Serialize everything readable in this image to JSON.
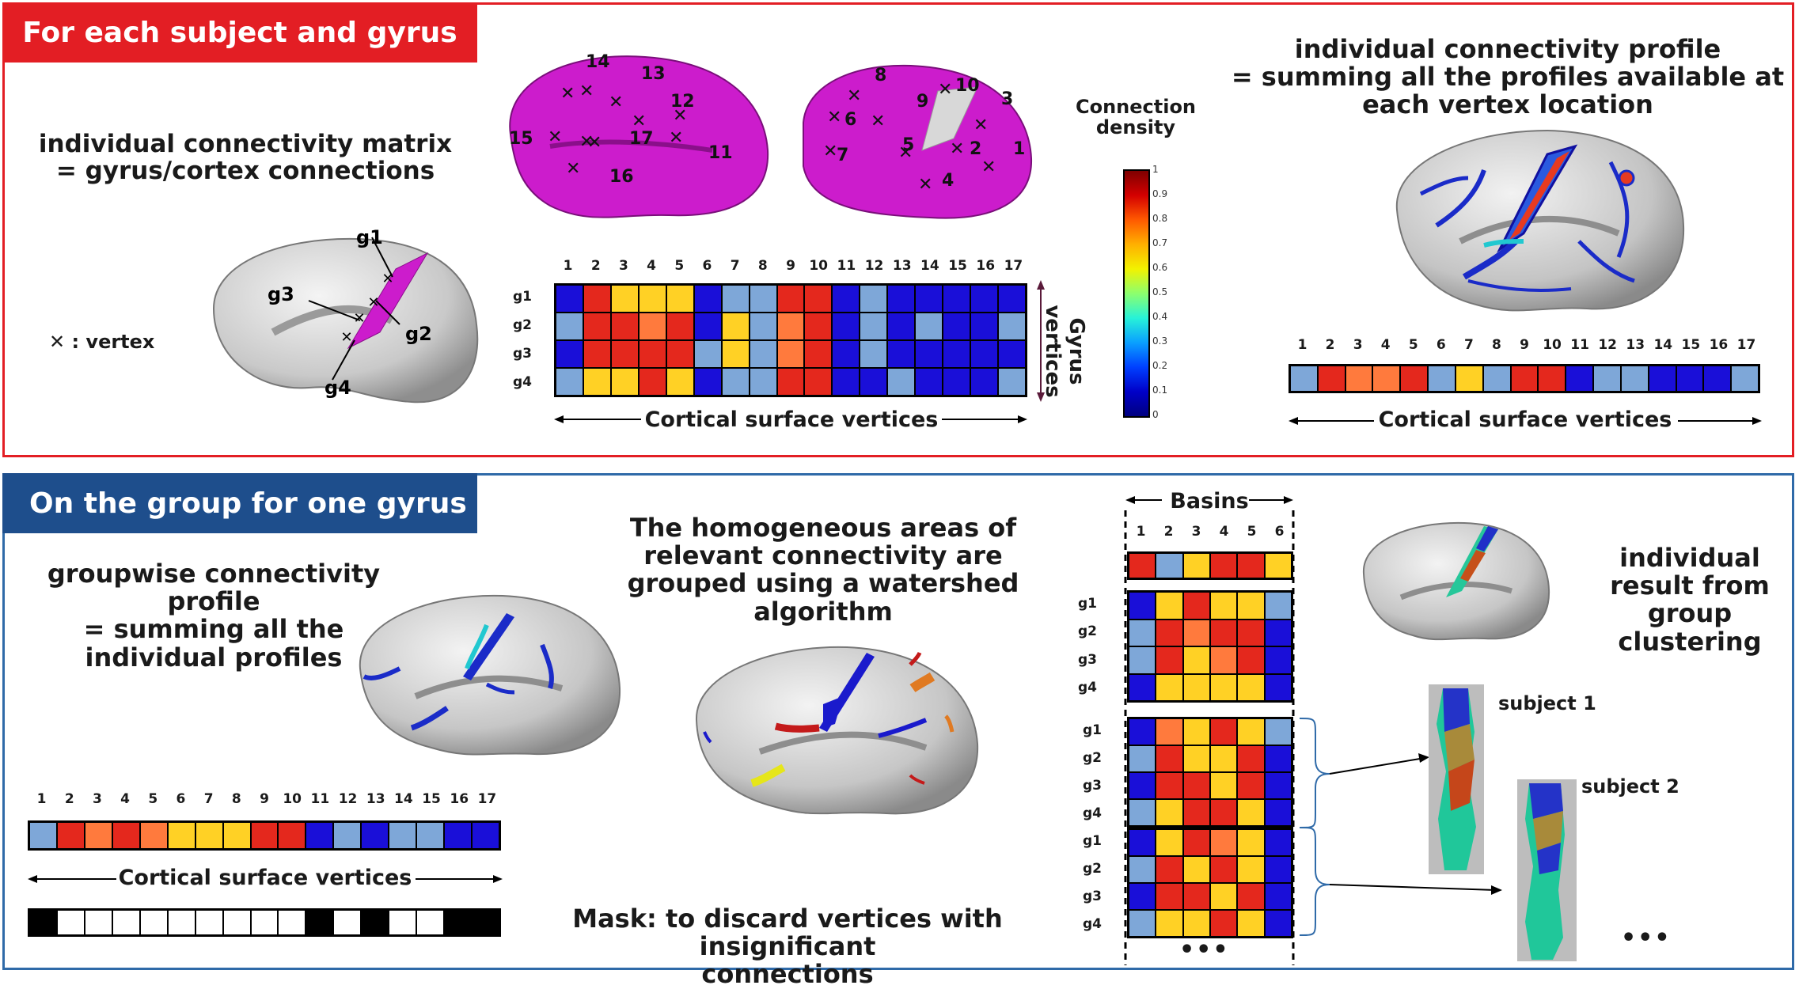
{
  "colors": {
    "c1": "#e4281d",
    "c2": "#ff7a3d",
    "c3": "#ffd125",
    "c4": "#7ea7d8",
    "c5": "#1a0fd8",
    "red_border": "#e31e24",
    "blue_border": "#2f6aa8",
    "red_header": "#e31e24",
    "blue_header": "#1e4e8c",
    "magenta": "#cc1ccc"
  },
  "top": {
    "header": "For each subject and gyrus",
    "matrix_text_line1": "individual connectivity matrix",
    "matrix_text_line2": "= gyrus/cortex connections",
    "vertex_legend": ": vertex",
    "gyrus_labels": [
      "g1",
      "g2",
      "g3",
      "g4"
    ],
    "vertex_numbers": [
      "1",
      "2",
      "3",
      "4",
      "5",
      "6",
      "7",
      "8",
      "9",
      "10",
      "11",
      "12",
      "13",
      "14",
      "15",
      "16",
      "17"
    ],
    "matrix_rows": [
      [
        5,
        1,
        3,
        3,
        3,
        5,
        4,
        4,
        1,
        1,
        5,
        4,
        5,
        5,
        5,
        5,
        5
      ],
      [
        4,
        1,
        1,
        2,
        1,
        5,
        3,
        4,
        2,
        1,
        5,
        4,
        5,
        4,
        5,
        5,
        4
      ],
      [
        5,
        1,
        1,
        1,
        1,
        4,
        3,
        4,
        2,
        1,
        5,
        4,
        5,
        5,
        5,
        5,
        5
      ],
      [
        4,
        3,
        3,
        1,
        3,
        5,
        4,
        4,
        1,
        1,
        5,
        5,
        4,
        5,
        5,
        5,
        4
      ]
    ],
    "cortical_label": "Cortical surface vertices",
    "gyrus_vertices_label": "Gyrus vertices",
    "colorbar_title_line1": "Connection",
    "colorbar_title_line2": "density",
    "colorbar_ticks": [
      "1",
      "0.9",
      "0.8",
      "0.7",
      "0.6",
      "0.5",
      "0.4",
      "0.3",
      "0.2",
      "0.1",
      "0"
    ],
    "profile_text_line1": "individual connectivity profile",
    "profile_text_line2": "= summing all the profiles available at",
    "profile_text_line3": "each vertex location",
    "profile_row": [
      4,
      1,
      2,
      2,
      1,
      4,
      3,
      4,
      1,
      1,
      5,
      4,
      4,
      5,
      5,
      5,
      4
    ],
    "profile_cortical_label": "Cortical surface vertices"
  },
  "bottom": {
    "header": "On the group for one gyrus",
    "group_text_line1": "groupwise connectivity  profile",
    "group_text_line2": "= summing all the",
    "group_text_line3": "individual profiles",
    "group_row": [
      4,
      1,
      2,
      1,
      2,
      3,
      3,
      3,
      1,
      1,
      5,
      4,
      5,
      4,
      4,
      5,
      5
    ],
    "group_cortical_label": "Cortical surface vertices",
    "mask_row": [
      1,
      0,
      0,
      0,
      0,
      0,
      0,
      0,
      0,
      0,
      1,
      0,
      1,
      0,
      0,
      1,
      1
    ],
    "mask_text_line1": "Mask: to discard vertices with insignificant",
    "mask_text_line2": "connections",
    "watershed_line1": "The homogeneous areas of",
    "watershed_line2": "relevant connectivity are",
    "watershed_line3": "grouped using a watershed",
    "watershed_line4": "algorithm",
    "basins_label": "Basins",
    "basin_numbers": [
      "1",
      "2",
      "3",
      "4",
      "5",
      "6"
    ],
    "basin_profile": [
      1,
      4,
      3,
      1,
      1,
      3
    ],
    "basin_matrix_1": [
      [
        5,
        3,
        1,
        3,
        3,
        4
      ],
      [
        4,
        1,
        2,
        1,
        1,
        5
      ],
      [
        4,
        1,
        3,
        2,
        1,
        5
      ],
      [
        5,
        3,
        3,
        3,
        3,
        5
      ]
    ],
    "basin_matrix_2": [
      [
        5,
        2,
        3,
        1,
        3,
        4
      ],
      [
        4,
        1,
        3,
        3,
        1,
        5
      ],
      [
        5,
        1,
        1,
        3,
        1,
        5
      ],
      [
        4,
        3,
        1,
        1,
        3,
        5
      ]
    ],
    "basin_matrix_3": [
      [
        5,
        3,
        1,
        2,
        3,
        5
      ],
      [
        4,
        1,
        3,
        1,
        3,
        5
      ],
      [
        5,
        1,
        1,
        3,
        1,
        5
      ],
      [
        4,
        3,
        3,
        1,
        3,
        5
      ]
    ],
    "ellipsis": "•••",
    "result_line1": "individual",
    "result_line2": "result from",
    "result_line3": "group",
    "result_line4": "clustering",
    "subject1": "subject 1",
    "subject2": "subject 2"
  }
}
